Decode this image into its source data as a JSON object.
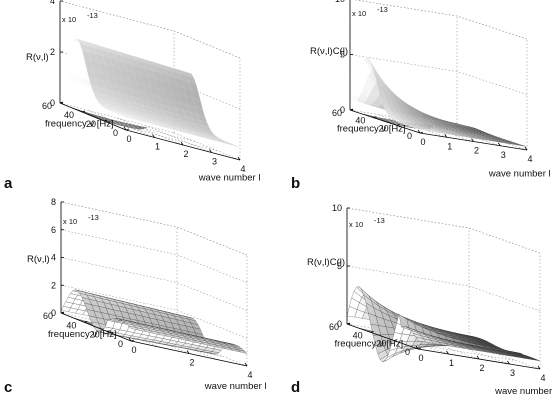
{
  "figure": {
    "colors": {
      "surface_light": "#f2f2f2",
      "surface_dark": "#1a1a1a",
      "axes": "#000000",
      "grid": "#9a9a9a",
      "contour": "#444444"
    },
    "panels": [
      {
        "label": "a",
        "zlabel": "R(ν,l)",
        "xlabel": "wave number l",
        "ylabel": "frequency ν [Hz]",
        "exponent": "x 10",
        "exponent_power": "-13",
        "ztick_labels": [
          "0",
          "2",
          "4"
        ],
        "xtick_labels": [
          "0",
          "1",
          "2",
          "3",
          "4"
        ],
        "ytick_labels": [
          "60",
          "40",
          "20",
          "0"
        ],
        "zlim": [
          0,
          4
        ]
      },
      {
        "label": "b",
        "zlabel": "R(ν,l)C(l)",
        "xlabel": "wave number l",
        "ylabel": "frequency ν [Hz]",
        "exponent": "x 10",
        "exponent_power": "-13",
        "ztick_labels": [
          "0",
          "5",
          "10"
        ],
        "xtick_labels": [
          "0",
          "1",
          "2",
          "3",
          "4"
        ],
        "ytick_labels": [
          "60",
          "40",
          "20",
          "0"
        ],
        "zlim": [
          0,
          10
        ]
      },
      {
        "label": "c",
        "zlabel": "R(ν,l)",
        "xlabel": "wave number l",
        "ylabel": "frequency ν [Hz]",
        "exponent": "x 10",
        "exponent_power": "-13",
        "ztick_labels": [
          "0",
          "2",
          "4",
          "6",
          "8"
        ],
        "xtick_labels": [
          "0",
          "2",
          "4"
        ],
        "ytick_labels": [
          "60",
          "40",
          "20",
          "0"
        ],
        "zlim": [
          0,
          8
        ]
      },
      {
        "label": "d",
        "zlabel": "R(ν,l)C(l)",
        "xlabel": "wave number l",
        "ylabel": "frequency ν [Hz]",
        "exponent": "x 10",
        "exponent_power": "-13",
        "ztick_labels": [
          "0",
          "5",
          "10"
        ],
        "xtick_labels": [
          "0",
          "1",
          "2",
          "3",
          "4"
        ],
        "ytick_labels": [
          "60",
          "40",
          "20",
          "0"
        ],
        "zlim": [
          0,
          10
        ]
      }
    ]
  },
  "chart_data": [
    {
      "type": "surface",
      "panel": "a",
      "x_name": "wave number l",
      "y_name": "frequency ν [Hz]",
      "z_name": "R(ν,l)",
      "z_scale": "x 10^-13",
      "xlim": [
        0,
        4
      ],
      "ylim": [
        0,
        60
      ],
      "zlim": [
        0,
        4
      ],
      "description_values": {
        "peak_frequency_hz": 45,
        "peak_value": 2.8,
        "baseline_value": 0.5
      }
    },
    {
      "type": "surface",
      "panel": "b",
      "x_name": "wave number l",
      "y_name": "frequency ν [Hz]",
      "z_name": "R(ν,l)C(l)",
      "z_scale": "x 10^-13",
      "xlim": [
        0,
        4
      ],
      "ylim": [
        0,
        60
      ],
      "zlim": [
        0,
        10
      ],
      "description_values": {
        "peak_frequency_hz": 45,
        "peak_value": 5.2,
        "baseline_value": 0.3
      }
    },
    {
      "type": "surface",
      "panel": "c",
      "x_name": "wave number l",
      "y_name": "frequency ν [Hz]",
      "z_name": "R(ν,l)",
      "z_scale": "x 10^-13",
      "xlim": [
        0,
        4
      ],
      "ylim": [
        0,
        60
      ],
      "zlim": [
        0,
        8
      ],
      "description_values": {
        "oscillation_peak_value": 1.6,
        "baseline_value": 0.4
      }
    },
    {
      "type": "surface",
      "panel": "d",
      "x_name": "wave number l",
      "y_name": "frequency ν [Hz]",
      "z_name": "R(ν,l)C(l)",
      "z_scale": "x 10^-13",
      "xlim": [
        0,
        4
      ],
      "ylim": [
        0,
        60
      ],
      "zlim": [
        0,
        10
      ],
      "description_values": {
        "oscillation_peak_value": 3.2,
        "baseline_value": 0.3
      }
    }
  ]
}
